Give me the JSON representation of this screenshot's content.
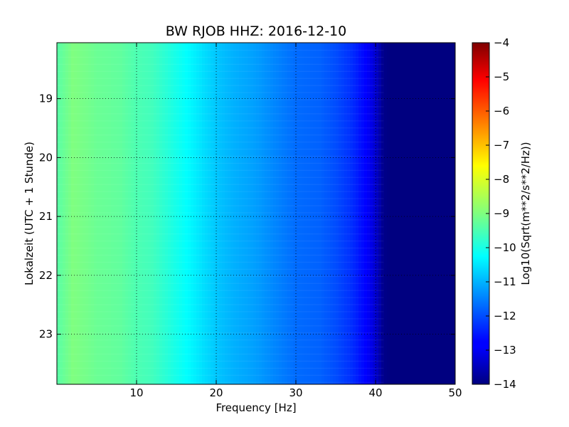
{
  "chart_data": {
    "type": "heatmap",
    "title": "BW RJOB HHZ: 2016-12-10",
    "xlabel": "Frequency [Hz]",
    "ylabel": "Lokalzeit (UTC + 1 Stunde)",
    "xlim": [
      0,
      50
    ],
    "ylim": [
      18.05,
      23.85
    ],
    "x_ticks": [
      10,
      20,
      30,
      40,
      50
    ],
    "x_tick_labels": [
      "10",
      "20",
      "30",
      "40",
      "50"
    ],
    "y_ticks": [
      19,
      20,
      21,
      22,
      23
    ],
    "y_tick_labels": [
      "19",
      "20",
      "21",
      "22",
      "23"
    ],
    "grid": true,
    "colormap": "jet",
    "colorbar": {
      "label": "Log10(Sqrt(m**2/s**2/Hz))",
      "range": [
        -14,
        -4
      ],
      "ticks": [
        -14,
        -13,
        -12,
        -11,
        -10,
        -9,
        -8,
        -7,
        -6,
        -5,
        -4
      ],
      "tick_labels": [
        "−14",
        "−13",
        "−12",
        "−11",
        "−10",
        "−9",
        "−8",
        "−7",
        "−6",
        "−5",
        "−4"
      ]
    },
    "spectral_profile": {
      "frequency_hz": [
        0,
        2,
        5,
        8,
        10,
        12,
        14,
        16,
        18,
        20,
        22,
        25,
        28,
        30,
        33,
        35,
        37,
        39,
        40,
        41,
        42,
        50
      ],
      "log10_amplitude": [
        -9.4,
        -9.0,
        -9.2,
        -9.3,
        -9.5,
        -9.6,
        -9.9,
        -10.2,
        -10.5,
        -10.8,
        -11.0,
        -11.2,
        -11.5,
        -11.7,
        -11.8,
        -12.0,
        -12.3,
        -12.8,
        -13.2,
        -13.9,
        -14.0,
        -14.0
      ]
    }
  }
}
